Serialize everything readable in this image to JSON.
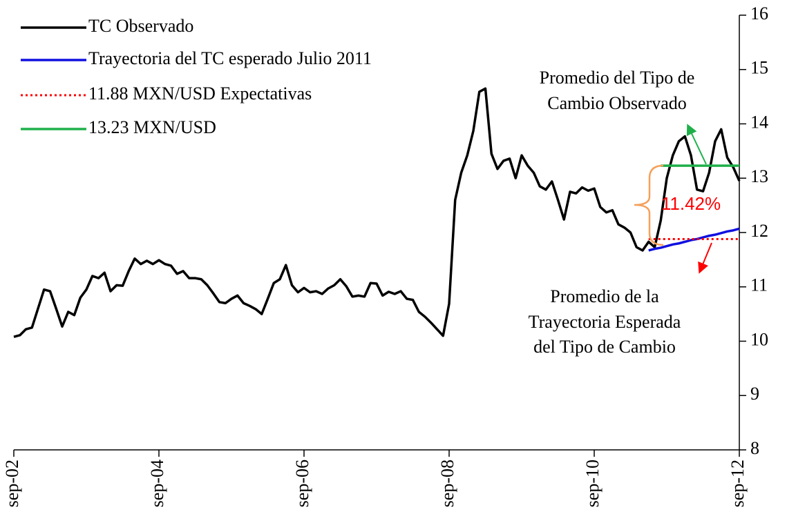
{
  "chart_data": {
    "type": "line",
    "categories": [
      "sep-02",
      null,
      null,
      null,
      null,
      null,
      null,
      null,
      null,
      null,
      null,
      null,
      null,
      null,
      null,
      null,
      null,
      null,
      null,
      null,
      null,
      null,
      null,
      null,
      "sep-04",
      null,
      null,
      null,
      null,
      null,
      null,
      null,
      null,
      null,
      null,
      null,
      null,
      null,
      null,
      null,
      null,
      null,
      null,
      null,
      null,
      null,
      null,
      null,
      "sep-06",
      null,
      null,
      null,
      null,
      null,
      null,
      null,
      null,
      null,
      null,
      null,
      null,
      null,
      null,
      null,
      null,
      null,
      null,
      null,
      null,
      null,
      null,
      null,
      "sep-08",
      null,
      null,
      null,
      null,
      null,
      null,
      null,
      null,
      null,
      null,
      null,
      null,
      null,
      null,
      null,
      null,
      null,
      null,
      null,
      null,
      null,
      null,
      null,
      "sep-10",
      null,
      null,
      null,
      null,
      null,
      null,
      null,
      null,
      null,
      null,
      null,
      null,
      null,
      null,
      null,
      null,
      null,
      null,
      null,
      null,
      null,
      null,
      null,
      "sep-12"
    ],
    "series": [
      {
        "name": "TC Observado",
        "color": "#000000",
        "style": "solid",
        "values": [
          10.08,
          10.11,
          10.22,
          10.25,
          10.6,
          10.95,
          10.92,
          10.6,
          10.27,
          10.54,
          10.48,
          10.8,
          10.95,
          11.2,
          11.16,
          11.26,
          10.92,
          11.03,
          11.02,
          11.29,
          11.52,
          11.42,
          11.48,
          11.42,
          11.49,
          11.42,
          11.39,
          11.24,
          11.29,
          11.16,
          11.16,
          11.14,
          11.03,
          10.88,
          10.72,
          10.7,
          10.78,
          10.84,
          10.7,
          10.65,
          10.59,
          10.5,
          10.78,
          11.07,
          11.14,
          11.4,
          11.03,
          10.9,
          10.98,
          10.9,
          10.92,
          10.87,
          10.97,
          11.03,
          11.14,
          11.01,
          10.82,
          10.84,
          10.82,
          11.07,
          11.06,
          10.84,
          10.91,
          10.87,
          10.92,
          10.78,
          10.76,
          10.54,
          10.45,
          10.34,
          10.22,
          10.1,
          10.69,
          12.6,
          13.1,
          13.42,
          13.87,
          14.59,
          14.65,
          13.45,
          13.17,
          13.32,
          13.36,
          13.0,
          13.42,
          13.23,
          13.1,
          12.85,
          12.79,
          12.94,
          12.6,
          12.24,
          12.75,
          12.72,
          12.83,
          12.77,
          12.81,
          12.47,
          12.37,
          12.41,
          12.15,
          12.09,
          12.0,
          11.73,
          11.67,
          11.83,
          11.73,
          12.22,
          13.0,
          13.42,
          13.68,
          13.77,
          13.42,
          12.79,
          12.76,
          13.1,
          13.68,
          13.9,
          13.38,
          13.2,
          12.95
        ]
      },
      {
        "name": "Trayectoria del TC esperado Julio 2011",
        "color": "#1010e0",
        "style": "solid",
        "values": [
          null,
          null,
          null,
          null,
          null,
          null,
          null,
          null,
          null,
          null,
          null,
          null,
          null,
          null,
          null,
          null,
          null,
          null,
          null,
          null,
          null,
          null,
          null,
          null,
          null,
          null,
          null,
          null,
          null,
          null,
          null,
          null,
          null,
          null,
          null,
          null,
          null,
          null,
          null,
          null,
          null,
          null,
          null,
          null,
          null,
          null,
          null,
          null,
          null,
          null,
          null,
          null,
          null,
          null,
          null,
          null,
          null,
          null,
          null,
          null,
          null,
          null,
          null,
          null,
          null,
          null,
          null,
          null,
          null,
          null,
          null,
          null,
          null,
          null,
          null,
          null,
          null,
          null,
          null,
          null,
          null,
          null,
          null,
          null,
          null,
          null,
          null,
          null,
          null,
          null,
          null,
          null,
          null,
          null,
          null,
          null,
          null,
          null,
          null,
          null,
          null,
          null,
          null,
          null,
          null,
          11.67,
          11.7,
          11.72,
          11.75,
          11.78,
          11.8,
          11.83,
          11.86,
          11.88,
          11.91,
          11.94,
          11.96,
          11.99,
          12.02,
          12.04,
          12.07
        ]
      },
      {
        "name": "11.88 MXN/USD Expectativas",
        "color": "#ff0000",
        "style": "dotted",
        "values": [
          null,
          null,
          null,
          null,
          null,
          null,
          null,
          null,
          null,
          null,
          null,
          null,
          null,
          null,
          null,
          null,
          null,
          null,
          null,
          null,
          null,
          null,
          null,
          null,
          null,
          null,
          null,
          null,
          null,
          null,
          null,
          null,
          null,
          null,
          null,
          null,
          null,
          null,
          null,
          null,
          null,
          null,
          null,
          null,
          null,
          null,
          null,
          null,
          null,
          null,
          null,
          null,
          null,
          null,
          null,
          null,
          null,
          null,
          null,
          null,
          null,
          null,
          null,
          null,
          null,
          null,
          null,
          null,
          null,
          null,
          null,
          null,
          null,
          null,
          null,
          null,
          null,
          null,
          null,
          null,
          null,
          null,
          null,
          null,
          null,
          null,
          null,
          null,
          null,
          null,
          null,
          null,
          null,
          null,
          null,
          null,
          null,
          null,
          null,
          null,
          null,
          null,
          null,
          null,
          null,
          11.88,
          11.88,
          11.88,
          11.88,
          11.88,
          11.88,
          11.88,
          11.88,
          11.88,
          11.88,
          11.88,
          11.88,
          11.88,
          11.88,
          11.88,
          11.88
        ]
      },
      {
        "name": "13.23 MXN/USD",
        "color": "#1fb04a",
        "style": "solid",
        "values": [
          null,
          null,
          null,
          null,
          null,
          null,
          null,
          null,
          null,
          null,
          null,
          null,
          null,
          null,
          null,
          null,
          null,
          null,
          null,
          null,
          null,
          null,
          null,
          null,
          null,
          null,
          null,
          null,
          null,
          null,
          null,
          null,
          null,
          null,
          null,
          null,
          null,
          null,
          null,
          null,
          null,
          null,
          null,
          null,
          null,
          null,
          null,
          null,
          null,
          null,
          null,
          null,
          null,
          null,
          null,
          null,
          null,
          null,
          null,
          null,
          null,
          null,
          null,
          null,
          null,
          null,
          null,
          null,
          null,
          null,
          null,
          null,
          null,
          null,
          null,
          null,
          null,
          null,
          null,
          null,
          null,
          null,
          null,
          null,
          null,
          null,
          null,
          null,
          null,
          null,
          null,
          null,
          null,
          null,
          null,
          null,
          null,
          null,
          null,
          null,
          null,
          null,
          null,
          null,
          null,
          null,
          null,
          13.23,
          13.23,
          13.23,
          13.23,
          13.23,
          13.23,
          13.23,
          13.23,
          13.23,
          13.23,
          13.23,
          13.23,
          13.23,
          13.23
        ]
      }
    ],
    "ylim": [
      8,
      16
    ],
    "yticks": [
      8,
      9,
      10,
      11,
      12,
      13,
      14,
      15,
      16
    ],
    "y_axis_side": "right",
    "legend": "top-left",
    "grid": false,
    "annotations": [
      {
        "lines": [
          "Promedio del Tipo de",
          "Cambio Observado"
        ]
      },
      {
        "lines": [
          "Promedio de la",
          "Trayectoria Esperada",
          "del Tipo de Cambio"
        ]
      },
      {
        "lines": [
          "11.42%"
        ]
      }
    ]
  }
}
